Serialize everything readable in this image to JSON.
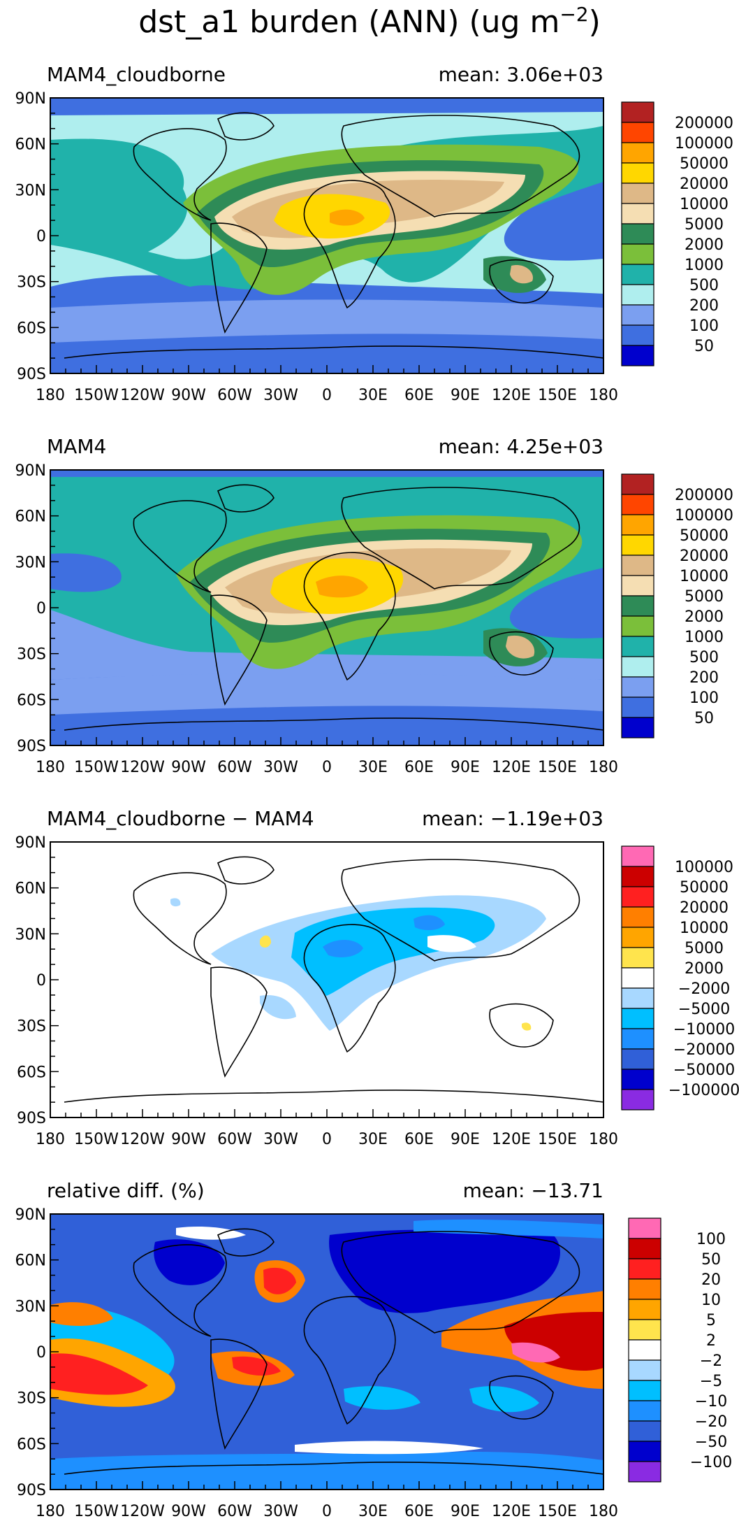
{
  "figure": {
    "title": "dst_a1 burden (ANN) (ug m",
    "title_exponent": "−2",
    "title_close": ")"
  },
  "axes": {
    "lat_labels": [
      "90N",
      "60N",
      "30N",
      "0",
      "30S",
      "60S",
      "90S"
    ],
    "lon_labels": [
      "180",
      "150W",
      "120W",
      "90W",
      "60W",
      "30W",
      "0",
      "30E",
      "60E",
      "90E",
      "120E",
      "150E",
      "180"
    ]
  },
  "panels": [
    {
      "name": "cloudborne",
      "left_title": "MAM4_cloudborne",
      "right_title": "mean: 3.06e+03",
      "colorbar_labels": [
        "200000",
        "100000",
        "50000",
        "20000",
        "10000",
        "5000",
        "2000",
        "1000",
        "500",
        "200",
        "100",
        "50"
      ],
      "colorbar_colors": [
        "#b22222",
        "#ff4500",
        "#ffa500",
        "#ffd700",
        "#deb887",
        "#f5deb3",
        "#2e8b57",
        "#7bbf3a",
        "#20b2aa",
        "#afeeee",
        "#7b9ff0",
        "#3f6fe0",
        "#0000cd"
      ]
    },
    {
      "name": "mam4",
      "left_title": "MAM4",
      "right_title": "mean: 4.25e+03",
      "colorbar_labels": [
        "200000",
        "100000",
        "50000",
        "20000",
        "10000",
        "5000",
        "2000",
        "1000",
        "500",
        "200",
        "100",
        "50"
      ],
      "colorbar_colors": [
        "#b22222",
        "#ff4500",
        "#ffa500",
        "#ffd700",
        "#deb887",
        "#f5deb3",
        "#2e8b57",
        "#7bbf3a",
        "#20b2aa",
        "#afeeee",
        "#7b9ff0",
        "#3f6fe0",
        "#0000cd"
      ]
    },
    {
      "name": "difference",
      "left_title": "MAM4_cloudborne − MAM4",
      "right_title": "mean: −1.19e+03",
      "colorbar_labels": [
        "100000",
        "50000",
        "20000",
        "10000",
        "5000",
        "2000",
        "−2000",
        "−5000",
        "−10000",
        "−20000",
        "−50000",
        "−100000"
      ],
      "colorbar_colors": [
        "#ff69b4",
        "#cc0000",
        "#ff2020",
        "#ff7f00",
        "#ffa500",
        "#ffe44d",
        "#ffffff",
        "#a8d8ff",
        "#00bfff",
        "#1e90ff",
        "#3060d8",
        "#0000cd",
        "#8a2be2"
      ]
    },
    {
      "name": "relative",
      "left_title": "relative diff. (%)",
      "right_title": "mean: −13.71",
      "colorbar_labels": [
        "100",
        "50",
        "20",
        "10",
        "5",
        "2",
        "−2",
        "−5",
        "−10",
        "−20",
        "−50",
        "−100"
      ],
      "colorbar_colors": [
        "#ff69b4",
        "#cc0000",
        "#ff2020",
        "#ff7f00",
        "#ffa500",
        "#ffe44d",
        "#ffffff",
        "#a8d8ff",
        "#00bfff",
        "#1e90ff",
        "#3060d8",
        "#0000cd",
        "#8a2be2"
      ]
    }
  ]
}
